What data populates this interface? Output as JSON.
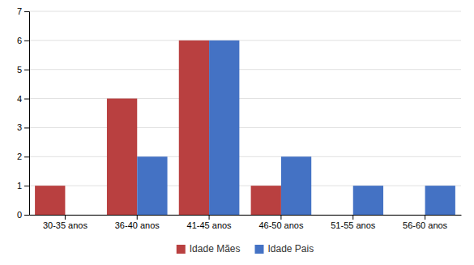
{
  "chart_data": {
    "type": "bar",
    "categories": [
      "30-35 anos",
      "36-40 anos",
      "41-45 anos",
      "46-50 anos",
      "51-55 anos",
      "56-60 anos"
    ],
    "series": [
      {
        "name": "Idade Mães",
        "color": "#b94040",
        "values": [
          1,
          4,
          6,
          1,
          0,
          0
        ]
      },
      {
        "name": "Idade Pais",
        "color": "#4472c4",
        "values": [
          0,
          2,
          6,
          2,
          1,
          1
        ]
      }
    ],
    "ylim": [
      0,
      7
    ],
    "yticks": [
      0,
      1,
      2,
      3,
      4,
      5,
      6,
      7
    ],
    "grid": true,
    "legend": "bottom"
  }
}
